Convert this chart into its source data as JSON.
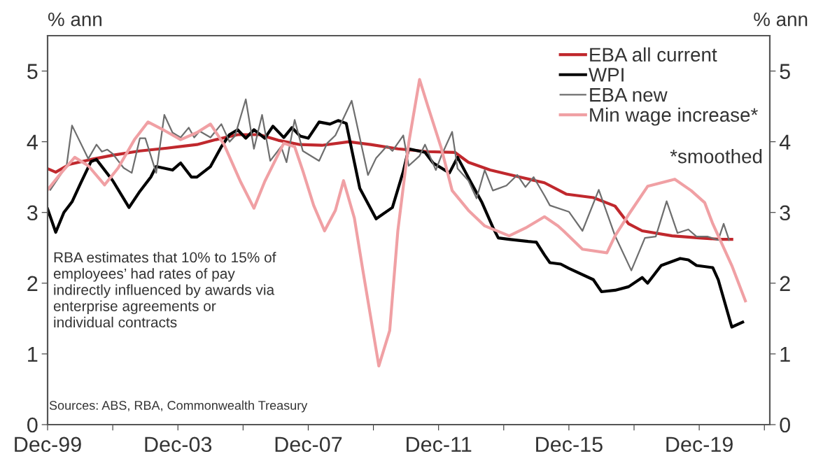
{
  "chart_data": {
    "type": "line",
    "ylabel": "% ann",
    "y2label": "% ann",
    "xlim": [
      "1999-12",
      "2022-02"
    ],
    "xticks": [
      {
        "value": "1999-12",
        "label": "Dec-99"
      },
      {
        "value": "2001-12",
        "label": null
      },
      {
        "value": "2003-12",
        "label": "Dec-03"
      },
      {
        "value": "2005-12",
        "label": null
      },
      {
        "value": "2007-12",
        "label": "Dec-07"
      },
      {
        "value": "2009-12",
        "label": null
      },
      {
        "value": "2011-12",
        "label": "Dec-11"
      },
      {
        "value": "2013-12",
        "label": null
      },
      {
        "value": "2015-12",
        "label": "Dec-15"
      },
      {
        "value": "2017-12",
        "label": null
      },
      {
        "value": "2019-12",
        "label": "Dec-19"
      },
      {
        "value": "2021-12",
        "label": null
      }
    ],
    "ylim": [
      0,
      5.5
    ],
    "yticks": [
      0,
      1,
      2,
      3,
      4,
      5
    ],
    "y2lim": [
      0,
      5.5
    ],
    "y2ticks": [
      0,
      1,
      2,
      3,
      4,
      5
    ],
    "grid": false,
    "legend": "top right",
    "marker": "none",
    "line_style": "solid",
    "series": [
      {
        "name": "EBA all current",
        "color": "#c0282d",
        "x": [
          "1999-12",
          "2000-03",
          "2000-08",
          "2001-04",
          "2001-12",
          "2002-10",
          "2003-08",
          "2004-07",
          "2005-02",
          "2005-10",
          "2006-06",
          "2007-01",
          "2007-09",
          "2008-05",
          "2009-03",
          "2009-11",
          "2010-09",
          "2011-08",
          "2012-06",
          "2012-11",
          "2013-07",
          "2014-05",
          "2015-03",
          "2015-11",
          "2016-09",
          "2017-05",
          "2017-10",
          "2018-03",
          "2019-02",
          "2019-12",
          "2020-08",
          "2020-12"
        ],
        "values": [
          3.62,
          3.57,
          3.68,
          3.75,
          3.81,
          3.87,
          3.91,
          3.96,
          4.03,
          4.1,
          4.1,
          4.02,
          3.96,
          3.95,
          4.0,
          3.96,
          3.9,
          3.86,
          3.85,
          3.71,
          3.6,
          3.51,
          3.42,
          3.26,
          3.21,
          3.09,
          2.84,
          2.74,
          2.67,
          2.64,
          2.62,
          2.62
        ]
      },
      {
        "name": "WPI",
        "color": "#000000",
        "x": [
          "1999-12",
          "2000-03",
          "2000-06",
          "2000-09",
          "2000-12",
          "2001-04",
          "2001-06",
          "2001-12",
          "2002-06",
          "2002-10",
          "2003-02",
          "2003-04",
          "2003-10",
          "2004-01",
          "2004-05",
          "2004-07",
          "2004-12",
          "2005-04",
          "2005-07",
          "2005-10",
          "2006-01",
          "2006-04",
          "2006-08",
          "2006-11",
          "2007-03",
          "2007-06",
          "2007-09",
          "2007-12",
          "2008-04",
          "2008-08",
          "2008-11",
          "2009-02",
          "2009-07",
          "2010-01",
          "2010-07",
          "2010-11",
          "2011-01",
          "2011-07",
          "2011-10",
          "2012-04",
          "2012-07",
          "2012-12",
          "2013-04",
          "2013-08",
          "2013-10",
          "2014-02",
          "2014-09",
          "2014-12",
          "2015-03",
          "2015-05",
          "2015-09",
          "2015-12",
          "2016-09",
          "2016-12",
          "2017-05",
          "2017-10",
          "2018-03",
          "2018-05",
          "2018-10",
          "2019-05",
          "2019-08",
          "2019-11",
          "2020-05",
          "2020-07",
          "2020-12",
          "2021-04"
        ],
        "values": [
          3.05,
          2.72,
          3.0,
          3.15,
          3.4,
          3.72,
          3.75,
          3.45,
          3.07,
          3.3,
          3.5,
          3.65,
          3.6,
          3.7,
          3.5,
          3.5,
          3.65,
          3.93,
          4.1,
          4.17,
          4.05,
          4.17,
          4.05,
          4.22,
          4.06,
          4.2,
          4.08,
          4.05,
          4.28,
          4.25,
          4.3,
          4.26,
          3.34,
          2.91,
          3.07,
          3.58,
          3.9,
          3.85,
          3.7,
          3.56,
          3.78,
          3.42,
          3.14,
          2.79,
          2.64,
          2.62,
          2.59,
          2.58,
          2.4,
          2.29,
          2.27,
          2.21,
          2.05,
          1.88,
          1.9,
          1.95,
          2.08,
          2.0,
          2.25,
          2.35,
          2.33,
          2.25,
          2.22,
          2.05,
          1.38,
          1.45
        ]
      },
      {
        "name": "EBA new",
        "color": "#6e6e6e",
        "x": [
          "2000-01",
          "2000-07",
          "2000-09",
          "2001-03",
          "2001-06",
          "2001-08",
          "2001-10",
          "2001-12",
          "2002-04",
          "2002-07",
          "2002-10",
          "2002-12",
          "2003-04",
          "2003-07",
          "2003-10",
          "2004-01",
          "2004-04",
          "2004-06",
          "2004-08",
          "2004-12",
          "2005-04",
          "2005-07",
          "2005-09",
          "2006-01",
          "2006-04",
          "2006-07",
          "2006-10",
          "2007-02",
          "2007-04",
          "2007-07",
          "2007-10",
          "2008-04",
          "2008-07",
          "2008-10",
          "2009-04",
          "2009-10",
          "2010-01",
          "2010-05",
          "2010-07",
          "2010-11",
          "2011-01",
          "2011-05",
          "2011-07",
          "2011-11",
          "2012-01",
          "2012-05",
          "2012-07",
          "2012-11",
          "2013-02",
          "2013-05",
          "2013-08",
          "2014-01",
          "2014-05",
          "2014-08",
          "2014-11",
          "2015-03",
          "2015-05",
          "2015-12",
          "2016-05",
          "2016-11",
          "2017-05",
          "2017-11",
          "2018-04",
          "2018-08",
          "2018-12",
          "2019-04",
          "2019-08",
          "2019-11",
          "2020-03",
          "2020-07",
          "2020-09",
          "2020-11"
        ],
        "values": [
          3.32,
          3.66,
          4.23,
          3.76,
          3.96,
          3.86,
          3.89,
          3.83,
          3.63,
          3.56,
          4.05,
          4.05,
          3.56,
          4.38,
          4.13,
          4.06,
          4.2,
          4.06,
          4.15,
          4.06,
          4.25,
          4.0,
          4.08,
          4.6,
          3.9,
          4.38,
          3.73,
          3.93,
          3.71,
          4.31,
          3.87,
          3.73,
          3.98,
          4.09,
          4.58,
          3.53,
          3.77,
          3.94,
          3.87,
          4.09,
          3.66,
          3.8,
          3.96,
          3.6,
          3.8,
          4.14,
          3.62,
          3.45,
          3.2,
          3.6,
          3.31,
          3.38,
          3.53,
          3.36,
          3.5,
          3.24,
          3.1,
          3.01,
          2.74,
          3.32,
          2.67,
          2.18,
          2.64,
          2.66,
          3.16,
          2.71,
          2.76,
          2.66,
          2.66,
          2.61,
          2.84,
          2.61
        ]
      },
      {
        "name": "Min wage increase*",
        "color": "#f0a0a4",
        "x": [
          "1999-12",
          "2000-05",
          "2000-10",
          "2001-03",
          "2001-09",
          "2002-02",
          "2002-08",
          "2003-01",
          "2003-07",
          "2004-01",
          "2004-07",
          "2004-12",
          "2005-05",
          "2005-11",
          "2006-04",
          "2006-08",
          "2007-03",
          "2007-07",
          "2007-10",
          "2008-02",
          "2008-06",
          "2008-10",
          "2009-01",
          "2009-05",
          "2009-08",
          "2010-02",
          "2010-06",
          "2010-09",
          "2011-01",
          "2011-05",
          "2011-08",
          "2012-01",
          "2012-05",
          "2012-11",
          "2013-05",
          "2014-02",
          "2014-08",
          "2015-03",
          "2015-08",
          "2015-10",
          "2016-05",
          "2017-02",
          "2017-05",
          "2017-10",
          "2018-05",
          "2019-03",
          "2019-09",
          "2020-02",
          "2020-05",
          "2020-12",
          "2021-05"
        ],
        "values": [
          3.32,
          3.56,
          3.78,
          3.66,
          3.39,
          3.63,
          4.03,
          4.28,
          4.16,
          4.03,
          4.13,
          4.25,
          3.96,
          3.44,
          3.06,
          3.44,
          3.98,
          3.93,
          3.59,
          3.1,
          2.74,
          3.03,
          3.45,
          2.92,
          2.21,
          0.83,
          1.33,
          2.74,
          3.98,
          4.88,
          4.51,
          3.91,
          3.31,
          3.03,
          2.81,
          2.67,
          2.78,
          2.94,
          2.81,
          2.74,
          2.48,
          2.43,
          2.67,
          2.97,
          3.37,
          3.47,
          3.31,
          3.14,
          2.84,
          2.25,
          1.75
        ]
      }
    ],
    "annotations": [
      "*smoothed",
      "RBA estimates that 10% to 15% of\nemployees’ had rates of pay\nindirectly influenced by awards via\nenterprise agreements or\nindividual contracts",
      "Sources: ABS, RBA, Commonwealth Treasury"
    ]
  }
}
